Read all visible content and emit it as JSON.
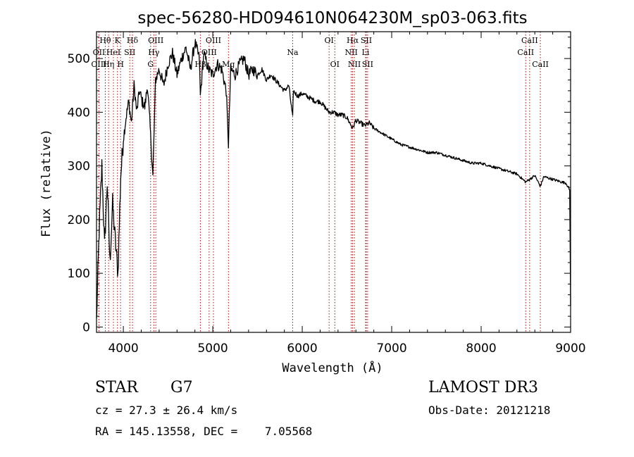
{
  "chart_data": {
    "type": "line",
    "title": "spec-56280-HD094610N064230M_sp03-063.fits",
    "xlabel": "Wavelength (Å)",
    "ylabel": "Flux (relative)",
    "xlim": [
      3700,
      9000
    ],
    "ylim": [
      -10,
      550
    ],
    "xticks": [
      4000,
      5000,
      6000,
      7000,
      8000,
      9000
    ],
    "xtick_labels": [
      "4000",
      "5000",
      "6000",
      "7000",
      "8000",
      "9000"
    ],
    "yticks": [
      0,
      100,
      200,
      300,
      400,
      500
    ],
    "ytick_labels": [
      "0",
      "100",
      "200",
      "300",
      "400",
      "500"
    ],
    "line_color": "#000000",
    "marker_color": "#a01010",
    "series": [
      {
        "name": "flux",
        "x": [
          3700,
          3730,
          3760,
          3790,
          3820,
          3850,
          3880,
          3910,
          3940,
          3970,
          4000,
          4030,
          4060,
          4090,
          4120,
          4150,
          4180,
          4210,
          4240,
          4270,
          4300,
          4330,
          4360,
          4400,
          4450,
          4500,
          4550,
          4600,
          4650,
          4700,
          4750,
          4800,
          4850,
          4861,
          4900,
          4950,
          5000,
          5050,
          5100,
          5150,
          5175,
          5200,
          5250,
          5300,
          5350,
          5400,
          5450,
          5500,
          5550,
          5600,
          5650,
          5700,
          5750,
          5800,
          5850,
          5893,
          5900,
          5950,
          6000,
          6050,
          6100,
          6150,
          6200,
          6250,
          6300,
          6350,
          6400,
          6450,
          6500,
          6563,
          6600,
          6650,
          6700,
          6750,
          6800,
          6850,
          6900,
          6950,
          7000,
          7100,
          7200,
          7300,
          7400,
          7500,
          7600,
          7700,
          7800,
          7900,
          8000,
          8100,
          8200,
          8300,
          8400,
          8498,
          8542,
          8600,
          8662,
          8700,
          8800,
          8900,
          8950,
          8990,
          9000
        ],
        "y": [
          10,
          180,
          300,
          150,
          270,
          120,
          230,
          160,
          100,
          280,
          350,
          390,
          420,
          380,
          450,
          400,
          440,
          420,
          410,
          450,
          370,
          280,
          460,
          480,
          450,
          490,
          510,
          470,
          500,
          520,
          480,
          530,
          500,
          430,
          510,
          480,
          470,
          490,
          480,
          440,
          340,
          480,
          470,
          490,
          500,
          470,
          480,
          470,
          480,
          460,
          470,
          460,
          450,
          440,
          450,
          390,
          440,
          430,
          435,
          430,
          425,
          420,
          420,
          410,
          400,
          400,
          395,
          395,
          390,
          370,
          385,
          380,
          375,
          380,
          370,
          365,
          360,
          355,
          350,
          340,
          335,
          330,
          325,
          325,
          320,
          315,
          310,
          305,
          305,
          300,
          295,
          290,
          285,
          270,
          275,
          282,
          262,
          280,
          275,
          270,
          268,
          255,
          40
        ]
      }
    ],
    "line_markers": [
      {
        "label": "Hθ",
        "wave": 3798,
        "row": 1
      },
      {
        "label": "OII",
        "wave": 3727,
        "row": 2
      },
      {
        "label": "OIII",
        "wave": 3727,
        "row": 3
      },
      {
        "label": "Hη",
        "wave": 3835,
        "row": 3
      },
      {
        "label": "K",
        "wave": 3934,
        "row": 1
      },
      {
        "label": "HeI",
        "wave": 3889,
        "row": 2
      },
      {
        "label": "H",
        "wave": 3969,
        "row": 3
      },
      {
        "label": "SII",
        "wave": 4072,
        "row": 2
      },
      {
        "label": "Hδ",
        "wave": 4102,
        "row": 1
      },
      {
        "label": "OIII",
        "wave": 4363,
        "row": 1
      },
      {
        "label": "Hγ",
        "wave": 4341,
        "row": 2
      },
      {
        "label": "G",
        "wave": 4305,
        "row": 3
      },
      {
        "label": "Hβ",
        "wave": 4861,
        "row": 3
      },
      {
        "label": "OIII",
        "wave": 5007,
        "row": 1
      },
      {
        "label": "OIII",
        "wave": 4959,
        "row": 2
      },
      {
        "label": "Mg",
        "wave": 5175,
        "row": 3
      },
      {
        "label": "Na",
        "wave": 5893,
        "row": 2
      },
      {
        "label": "OI",
        "wave": 6300,
        "row": 1
      },
      {
        "label": "OI",
        "wave": 6364,
        "row": 3
      },
      {
        "label": "Hα",
        "wave": 6563,
        "row": 1
      },
      {
        "label": "SII",
        "wave": 6716,
        "row": 1
      },
      {
        "label": "NII",
        "wave": 6548,
        "row": 2
      },
      {
        "label": "Li",
        "wave": 6708,
        "row": 2
      },
      {
        "label": "NII",
        "wave": 6583,
        "row": 3
      },
      {
        "label": "SII",
        "wave": 6731,
        "row": 3
      },
      {
        "label": "CaII",
        "wave": 8542,
        "row": 1
      },
      {
        "label": "CaII",
        "wave": 8498,
        "row": 2
      },
      {
        "label": "CaII",
        "wave": 8662,
        "row": 3
      }
    ]
  },
  "info": {
    "object_class": "STAR",
    "subclass": "G7",
    "survey": "LAMOST DR3",
    "redshift": "cz = 27.3 ± 26.4 km/s",
    "obs_date": "Obs-Date: 20121218",
    "coords": "RA = 145.13558, DEC =    7.05568"
  }
}
